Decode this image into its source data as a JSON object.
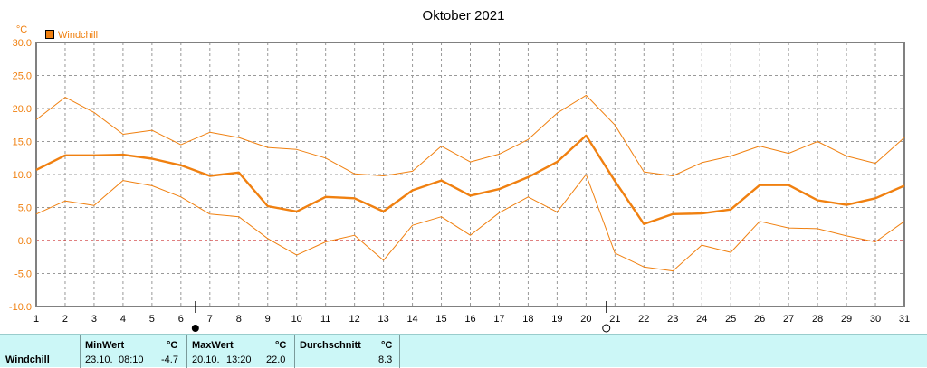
{
  "chart_data": {
    "type": "line",
    "title": "Oktober 2021",
    "ylabel": "°C",
    "xlabel": "",
    "legend": "Windchill",
    "legend_position": "top-left",
    "grid": true,
    "ylim": [
      -10,
      30
    ],
    "xlim": [
      1,
      31
    ],
    "x": [
      1,
      2,
      3,
      4,
      5,
      6,
      7,
      8,
      9,
      10,
      11,
      12,
      13,
      14,
      15,
      16,
      17,
      18,
      19,
      20,
      21,
      22,
      23,
      24,
      25,
      26,
      27,
      28,
      29,
      30,
      31
    ],
    "xticks": [
      "1",
      "2",
      "3",
      "4",
      "5",
      "6",
      "7",
      "8",
      "9",
      "10",
      "11",
      "12",
      "13",
      "14",
      "15",
      "16",
      "17",
      "18",
      "19",
      "20",
      "21",
      "22",
      "23",
      "24",
      "25",
      "26",
      "27",
      "28",
      "29",
      "30",
      "31"
    ],
    "yticks": [
      "30.0",
      "25.0",
      "20.0",
      "15.0",
      "10.0",
      "5.0",
      "0.0",
      "-5.0",
      "-10.0"
    ],
    "series": [
      {
        "name": "Windchill",
        "role": "mean",
        "values": [
          10.7,
          12.9,
          12.9,
          13.0,
          12.4,
          11.4,
          9.8,
          10.3,
          5.2,
          4.4,
          6.6,
          6.4,
          4.4,
          7.6,
          9.1,
          6.8,
          7.8,
          9.6,
          11.9,
          15.9,
          9.0,
          2.5,
          4.0,
          4.1,
          4.7,
          8.4,
          8.4,
          6.1,
          5.4,
          6.4,
          8.3
        ]
      },
      {
        "role": "max",
        "values": [
          18.3,
          21.7,
          19.4,
          16.1,
          16.7,
          14.5,
          16.4,
          15.6,
          14.1,
          13.8,
          12.5,
          10.1,
          9.8,
          10.5,
          14.3,
          11.9,
          13.1,
          15.3,
          19.3,
          22.0,
          17.5,
          10.4,
          9.8,
          11.8,
          12.8,
          14.3,
          13.2,
          15.0,
          12.8,
          11.7,
          15.6
        ]
      },
      {
        "role": "min",
        "values": [
          4.0,
          6.0,
          5.3,
          9.1,
          8.3,
          6.6,
          4.0,
          3.6,
          0.3,
          -2.2,
          -0.2,
          0.8,
          -3.0,
          2.3,
          3.6,
          0.8,
          4.2,
          6.6,
          4.3,
          10.0,
          -1.9,
          -4.0,
          -4.6,
          -0.7,
          -1.8,
          2.9,
          1.9,
          1.8,
          0.7,
          -0.2,
          2.9
        ]
      }
    ],
    "moon_markers": [
      {
        "day": 6.5,
        "symbol": "●",
        "phase": "new-moon"
      },
      {
        "day": 20.7,
        "symbol": "○",
        "phase": "full-moon"
      }
    ],
    "colors": {
      "line": "#f08010",
      "legend_label": "#f08010",
      "axis_label": "#f08010",
      "zero_line": "#c00000",
      "grid": "#999999",
      "frame": "#808080"
    }
  },
  "stats": {
    "label": "Windchill",
    "min": {
      "header": "MinWert",
      "unit": "°C",
      "date": "23.10.",
      "time": "08:10",
      "value": "-4.7"
    },
    "max": {
      "header": "MaxWert",
      "unit": "°C",
      "date": "20.10.",
      "time": "13:20",
      "value": "22.0"
    },
    "avg": {
      "header": "Durchschnitt",
      "unit": "°C",
      "value": "8.3"
    },
    "background": "#ccf7f7"
  }
}
